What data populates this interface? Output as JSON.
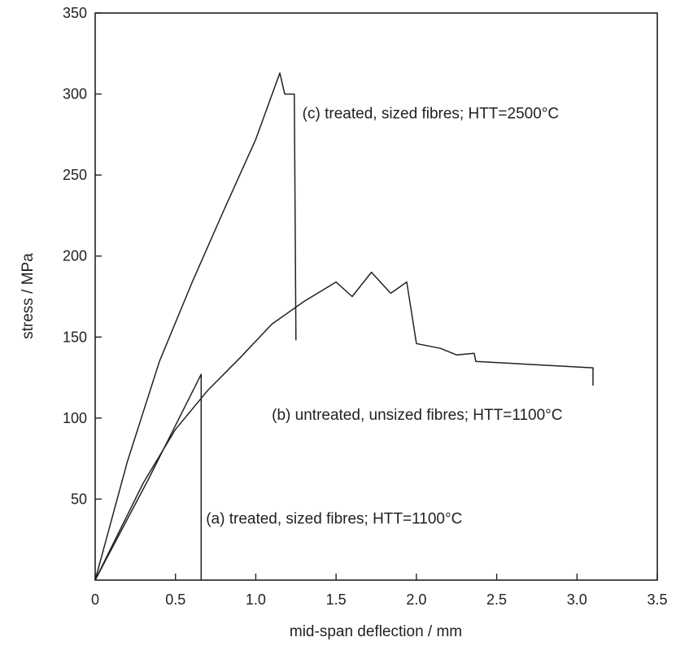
{
  "chart_data": {
    "type": "line",
    "xlabel": "mid-span deflection / mm",
    "ylabel": "stress / MPa",
    "xlim": [
      0,
      3.5
    ],
    "ylim": [
      0,
      350
    ],
    "x_ticks": [
      0,
      0.5,
      1.0,
      1.5,
      2.0,
      2.5,
      3.0,
      3.5
    ],
    "x_tick_labels": [
      "0",
      "0.5",
      "1.0",
      "1.5",
      "2.0",
      "2.5",
      "3.0",
      "3.5"
    ],
    "y_ticks": [
      50,
      100,
      150,
      200,
      250,
      300,
      350
    ],
    "y_tick_labels": [
      "50",
      "100",
      "150",
      "200",
      "250",
      "300",
      "350"
    ],
    "grid": false,
    "legend": "none",
    "series": [
      {
        "name": "(a) treated, sized fibres; HTT=1100°C",
        "points": [
          [
            0,
            0
          ],
          [
            0.33,
            62
          ],
          [
            0.66,
            127
          ],
          [
            0.66,
            0
          ]
        ]
      },
      {
        "name": "(b) untreated, unsized fibres; HTT=1100°C",
        "points": [
          [
            0,
            0
          ],
          [
            0.3,
            60
          ],
          [
            0.5,
            93
          ],
          [
            0.7,
            117
          ],
          [
            0.9,
            137
          ],
          [
            1.1,
            158
          ],
          [
            1.3,
            172
          ],
          [
            1.5,
            184
          ],
          [
            1.6,
            175
          ],
          [
            1.72,
            190
          ],
          [
            1.84,
            177
          ],
          [
            1.94,
            184
          ],
          [
            2.0,
            146
          ],
          [
            2.15,
            143
          ],
          [
            2.25,
            139
          ],
          [
            2.36,
            140
          ],
          [
            2.37,
            135
          ],
          [
            3.1,
            131
          ],
          [
            3.1,
            120
          ]
        ]
      },
      {
        "name": "(c) treated, sized fibres; HTT=2500°C",
        "points": [
          [
            0,
            0
          ],
          [
            0.2,
            73
          ],
          [
            0.4,
            135
          ],
          [
            0.6,
            183
          ],
          [
            0.8,
            228
          ],
          [
            1.0,
            272
          ],
          [
            1.15,
            313
          ],
          [
            1.18,
            300
          ],
          [
            1.24,
            300
          ],
          [
            1.25,
            148
          ]
        ]
      }
    ],
    "annotations": [
      {
        "text": "(c) treated, sized fibres; HTT=2500°C",
        "x": 1.29,
        "y": 285
      },
      {
        "text": "(b) untreated, unsized fibres; HTT=1100°C",
        "x": 1.1,
        "y": 99
      },
      {
        "text": "(a) treated, sized fibres; HTT=1100°C",
        "x": 0.69,
        "y": 35
      }
    ]
  }
}
